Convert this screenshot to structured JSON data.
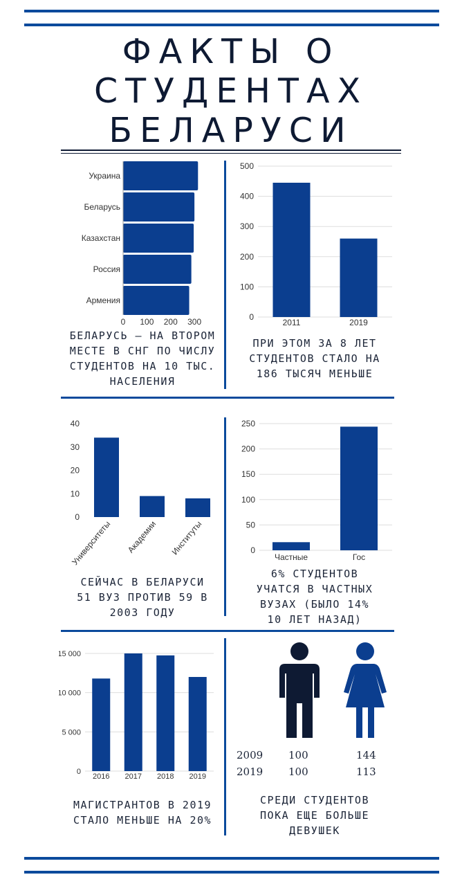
{
  "colors": {
    "bar": "#0b3e8f",
    "rule": "#0b4a9c",
    "text": "#0e1a33",
    "grid": "#dddddd",
    "person_male": "#0e1a33",
    "person_female": "#0b3e8f"
  },
  "title": {
    "line1": "ФАКТЫ О",
    "line2": "СТУДЕНТАХ",
    "line3": "БЕЛАРУСИ"
  },
  "chart_data": [
    {
      "id": "cis",
      "type": "bar",
      "orientation": "horizontal",
      "categories": [
        "Украина",
        "Беларусь",
        "Казахстан",
        "Россия",
        "Армения"
      ],
      "values": [
        315,
        300,
        297,
        287,
        278
      ],
      "xlim": [
        0,
        320
      ],
      "ticks": [
        0,
        100,
        200,
        300
      ],
      "tick_labels": [
        "0",
        "100",
        "200",
        "300"
      ],
      "title": "",
      "xlabel": "",
      "ylabel": ""
    },
    {
      "id": "students",
      "type": "bar",
      "categories": [
        "2011",
        "2019"
      ],
      "values": [
        445,
        260
      ],
      "ylim": [
        0,
        500
      ],
      "ticks": [
        0,
        100,
        200,
        300,
        400,
        500
      ],
      "tick_labels": [
        "0",
        "100",
        "200",
        "300",
        "400",
        "500"
      ],
      "grid": true
    },
    {
      "id": "institutions",
      "type": "bar",
      "categories": [
        "Университеты",
        "Академии",
        "Институты"
      ],
      "values": [
        34,
        9,
        8
      ],
      "ylim": [
        0,
        40
      ],
      "ticks": [
        0,
        10,
        20,
        30,
        40
      ],
      "tick_labels": [
        "0",
        "10",
        "20",
        "30",
        "40"
      ],
      "grid": false
    },
    {
      "id": "private",
      "type": "bar",
      "categories": [
        "Частные",
        "Гос"
      ],
      "values": [
        16,
        244
      ],
      "ylim": [
        0,
        250
      ],
      "ticks": [
        0,
        50,
        100,
        150,
        200,
        250
      ],
      "tick_labels": [
        "0",
        "50",
        "100",
        "150",
        "200",
        "250"
      ],
      "grid": true
    },
    {
      "id": "masters",
      "type": "bar",
      "categories": [
        "2016",
        "2017",
        "2018",
        "2019"
      ],
      "values": [
        11800,
        15000,
        14750,
        12000
      ],
      "ylim": [
        0,
        15000
      ],
      "ticks": [
        0,
        5000,
        10000,
        15000
      ],
      "tick_labels": [
        "0",
        "5 000",
        "10 000",
        "15 000"
      ],
      "grid": true
    }
  ],
  "captions": {
    "cis": [
      "БЕЛАРУСЬ — НА ВТОРОМ",
      "МЕСТЕ В СНГ ПО ЧИСЛУ",
      "СТУДЕНТОВ НА 10 ТЫС.",
      "НАСЕЛЕНИЯ"
    ],
    "students": [
      "ПРИ ЭТОМ ЗА 8 ЛЕТ",
      "СТУДЕНТОВ СТАЛО НА",
      "186 ТЫСЯЧ МЕНЬШЕ"
    ],
    "institutions": [
      "СЕЙЧАС В БЕЛАРУСИ",
      "51 ВУЗ ПРОТИВ 59 В",
      "2003 ГОДУ"
    ],
    "private": [
      "6% СТУДЕНТОВ",
      "УЧАТСЯ В ЧАСТНЫХ",
      "ВУЗАХ (БЫЛО 14%",
      "10 ЛЕТ НАЗАД)"
    ],
    "masters": [
      "МАГИСТРАНТОВ В 2019",
      "СТАЛО МЕНЬШЕ НА 20%"
    ],
    "gender": [
      "СРЕДИ СТУДЕНТОВ",
      "ПОКА ЕЩЕ БОЛЬШЕ",
      "ДЕВУШЕК"
    ]
  },
  "gender": {
    "icons": [
      "male-person-icon",
      "female-person-icon"
    ],
    "rows": [
      {
        "year": "2009",
        "male": "100",
        "female": "144"
      },
      {
        "year": "2019",
        "male": "100",
        "female": "113"
      }
    ]
  }
}
